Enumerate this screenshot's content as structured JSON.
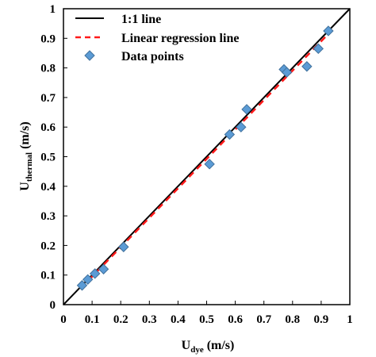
{
  "chart_data": {
    "type": "scatter",
    "xlim": [
      0,
      1
    ],
    "ylim": [
      0,
      1
    ],
    "x_ticks": [
      "0",
      "0.1",
      "0.2",
      "0.3",
      "0.4",
      "0.5",
      "0.6",
      "0.7",
      "0.8",
      "0.9",
      "1"
    ],
    "y_ticks": [
      "0",
      "0.1",
      "0.2",
      "0.3",
      "0.4",
      "0.5",
      "0.6",
      "0.7",
      "0.8",
      "0.9",
      "1"
    ],
    "xlabel": {
      "main": "U",
      "sub": "dye",
      "unit": " (m/s)"
    },
    "ylabel": {
      "main": "U",
      "sub": "thermal",
      "unit": " (m/s)"
    },
    "grid": false,
    "legend_position": "top-left",
    "series": [
      {
        "name": "1:1 line",
        "kind": "line",
        "color": "#000000",
        "x": [
          0,
          1
        ],
        "y": [
          0,
          1
        ]
      },
      {
        "name": "Linear regression line",
        "kind": "dashed-line",
        "color": "#ff1a1a",
        "x": [
          0.06,
          0.93
        ],
        "y": [
          0.055,
          0.92
        ]
      },
      {
        "name": "Data points",
        "kind": "scatter",
        "marker": "diamond",
        "color": "#5b9bd5",
        "edge_color": "#41719c",
        "x": [
          0.065,
          0.085,
          0.11,
          0.14,
          0.21,
          0.51,
          0.58,
          0.62,
          0.64,
          0.77,
          0.78,
          0.85,
          0.89,
          0.925
        ],
        "y": [
          0.065,
          0.085,
          0.105,
          0.12,
          0.195,
          0.475,
          0.575,
          0.6,
          0.66,
          0.795,
          0.785,
          0.805,
          0.865,
          0.925
        ]
      }
    ]
  }
}
